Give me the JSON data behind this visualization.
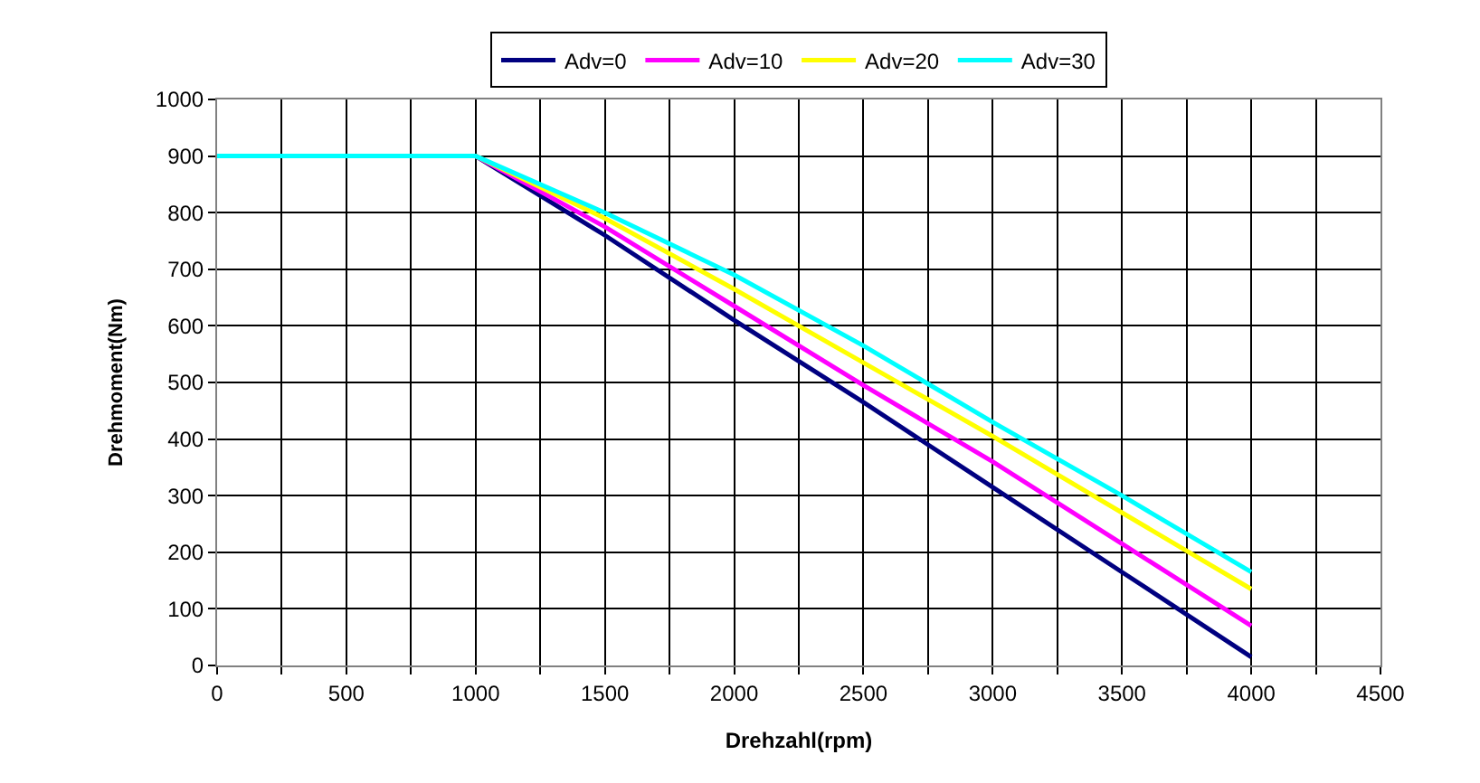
{
  "chart_data": {
    "type": "line",
    "xlabel": "Drehzahl(rpm)",
    "ylabel": "Drehmoment(Nm)",
    "x": [
      0,
      1000,
      1500,
      2000,
      2500,
      3000,
      3500,
      4000
    ],
    "series": [
      {
        "name": "Adv=0",
        "color": "#000080",
        "values": [
          900,
          900,
          760,
          610,
          465,
          315,
          165,
          15
        ]
      },
      {
        "name": "Adv=10",
        "color": "#ff00ff",
        "values": [
          900,
          900,
          775,
          635,
          495,
          360,
          215,
          70
        ]
      },
      {
        "name": "Adv=20",
        "color": "#ffff00",
        "values": [
          900,
          900,
          790,
          665,
          535,
          405,
          270,
          135
        ]
      },
      {
        "name": "Adv=30",
        "color": "#00ffff",
        "values": [
          900,
          900,
          800,
          690,
          565,
          430,
          300,
          165
        ]
      }
    ],
    "xlim": [
      0,
      4500
    ],
    "xticks": [
      0,
      {
        "value": 250,
        "label": null
      },
      500,
      {
        "value": 750,
        "label": null
      },
      1000,
      {
        "value": 1250,
        "label": null
      },
      1500,
      {
        "value": 1750,
        "label": null
      },
      2000,
      {
        "value": 2250,
        "label": null
      },
      2500,
      {
        "value": 2750,
        "label": null
      },
      3000,
      {
        "value": 3250,
        "label": null
      },
      3500,
      {
        "value": 3750,
        "label": null
      },
      4000,
      {
        "value": 4250,
        "label": null
      },
      4500
    ],
    "ylim": [
      0,
      1000
    ],
    "yticks": [
      0,
      100,
      200,
      300,
      400,
      500,
      600,
      700,
      800,
      900,
      1000
    ],
    "grid": true,
    "legend": "top",
    "marker": "none",
    "line_style": "solid"
  }
}
